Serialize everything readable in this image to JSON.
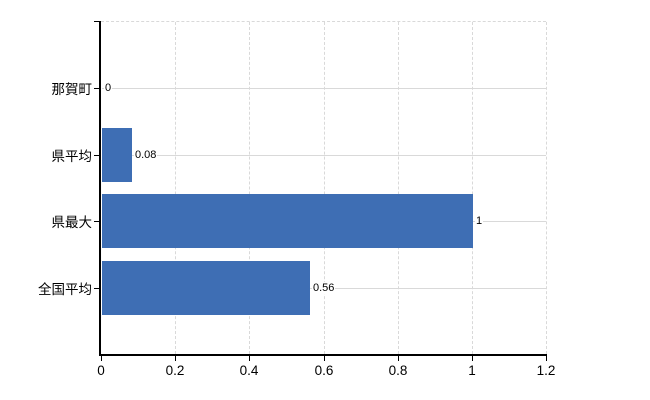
{
  "chart_data": {
    "type": "bar",
    "orientation": "horizontal",
    "title": "",
    "xlabel": "",
    "ylabel": "",
    "categories": [
      "那賀町",
      "県平均",
      "県最大",
      "全国平均"
    ],
    "values": [
      0,
      0.08,
      1,
      0.56
    ],
    "value_labels": [
      "0",
      "0.08",
      "1",
      "0.56"
    ],
    "xlim": [
      0,
      1.2
    ],
    "x_ticks": [
      0,
      0.2,
      0.4,
      0.6,
      0.8,
      1,
      1.2
    ],
    "x_tick_labels": [
      "0",
      "0.2",
      "0.4",
      "0.6",
      "0.8",
      "1",
      "1.2"
    ],
    "grid": true,
    "legend": false,
    "gridline_style": {
      "vertical": "dashed",
      "horizontal": "solid",
      "top_border": "dashed"
    },
    "colors": {
      "bar": "#3e6eb4",
      "grid": "#d9d9d9",
      "axis": "#000000",
      "text": "#000000",
      "background": "#ffffff"
    }
  }
}
